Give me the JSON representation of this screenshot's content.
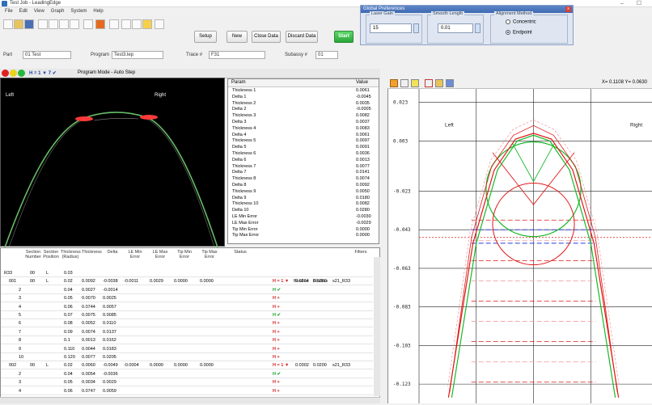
{
  "app": {
    "title": "Test Job - LeadingEdge",
    "window_controls": "–  ☐"
  },
  "menu": [
    "File",
    "Edit",
    "View",
    "Graph",
    "System",
    "Help"
  ],
  "buttons": {
    "setup": "Setup",
    "new": "New",
    "close_data": "Close Data",
    "discard_data": "Discard Data",
    "start": "Start"
  },
  "global_prefs": {
    "title": "Global Preferences",
    "laser_gain_label": "Laser Gain",
    "laser_gain_value": "15",
    "smooth_length_label": "Smooth Length",
    "smooth_length_value": "0.01",
    "alignment_label": "Alignment Method",
    "alignment_options": [
      "Concentric",
      "Endpoint"
    ],
    "alignment_selected": "Endpoint"
  },
  "part_row": {
    "part_label": "Part",
    "part_value": "01 Test",
    "program_label": "Program",
    "program_value": "Test3.lep",
    "trace_label": "Trace #",
    "trace_value": "F31",
    "subassy_label": "Subassy #",
    "subassy_value": "01"
  },
  "status_row": {
    "mode_text": "Program Mode - Auto Step",
    "indicators": "H = 1 ▼ 7 ✔"
  },
  "scan": {
    "left_label": "Left",
    "right_label": "Right"
  },
  "params": {
    "col_param": "Param",
    "col_value": "Value",
    "rows": [
      [
        "Thickness 1",
        "0.0061"
      ],
      [
        "Delta 1",
        "-0.0045"
      ],
      [
        "Thickness 2",
        "0.0035"
      ],
      [
        "Delta 2",
        "-0.0005"
      ],
      [
        "Thickness 3",
        "0.0082"
      ],
      [
        "Delta 3",
        "0.0037"
      ],
      [
        "Thickness 4",
        "0.0083"
      ],
      [
        "Delta 4",
        "0.0061"
      ],
      [
        "Thickness 5",
        "0.0097"
      ],
      [
        "Delta 5",
        "0.0091"
      ],
      [
        "Thickness 6",
        "0.0036"
      ],
      [
        "Delta 6",
        "0.0013"
      ],
      [
        "Thickness 7",
        "0.0077"
      ],
      [
        "Delta 7",
        "0.0141"
      ],
      [
        "Thickness 8",
        "0.0074"
      ],
      [
        "Delta 8",
        "0.0092"
      ],
      [
        "Thickness 9",
        "0.0050"
      ],
      [
        "Delta 9",
        "0.0180"
      ],
      [
        "Thickness 10",
        "0.0082"
      ],
      [
        "Delta 10",
        "0.0280"
      ],
      [
        "LE Min Error",
        "-0.0030"
      ],
      [
        "LE Max Error",
        "-0.0029"
      ],
      [
        "Tip Min Error",
        "0.0000"
      ],
      [
        "Tip Max Error",
        "0.0000"
      ]
    ]
  },
  "grid": {
    "headers": [
      "Section Number",
      "Section Position",
      "Thickness (Radius)",
      "Thickness",
      "Delta",
      "LE Min Error",
      "LE Max Error",
      "Tip Min Error",
      "Tip Max Error",
      "Status",
      "Filters"
    ],
    "extra_headers": [
      "fRadius",
      "tRadius"
    ],
    "rows": [
      {
        "c0": "R33",
        "c1": "00",
        "c2": "L",
        "c3": "0.03",
        "c4": "",
        "c5": "",
        "c6": "",
        "c7": "",
        "c8": "",
        "c9": "",
        "st": "",
        "x1": "",
        "x2": "",
        "x3": ""
      },
      {
        "c0": "001",
        "c1": "00",
        "c2": "L",
        "c3": "0.02",
        "c4": "0.0092",
        "c5": "-0.0038",
        "c6": "-0.0011",
        "c7": "0.0029",
        "c8": "0.0000",
        "c9": "0.0000",
        "st": "H = 1 ▼",
        "x1": "0.0264",
        "x2": "0.0280",
        "x3": "s21_R33"
      },
      {
        "c0": "2",
        "c1": "",
        "c2": "",
        "c3": "0.04",
        "c4": "0.0027",
        "c5": "-0.0014",
        "c6": "",
        "c7": "",
        "c8": "",
        "c9": "",
        "st": "H ✔",
        "x1": "",
        "x2": "",
        "x3": ""
      },
      {
        "c0": "3",
        "c1": "",
        "c2": "",
        "c3": "0.05",
        "c4": "0.0070",
        "c5": "0.0025",
        "c6": "",
        "c7": "",
        "c8": "",
        "c9": "",
        "st": "H +",
        "x1": "",
        "x2": "",
        "x3": ""
      },
      {
        "c0": "4",
        "c1": "",
        "c2": "",
        "c3": "0.06",
        "c4": "0.0744",
        "c5": "0.0057",
        "c6": "",
        "c7": "",
        "c8": "",
        "c9": "",
        "st": "H +",
        "x1": "",
        "x2": "",
        "x3": ""
      },
      {
        "c0": "5",
        "c1": "",
        "c2": "",
        "c3": "0.07",
        "c4": "0.0075",
        "c5": "0.0085",
        "c6": "",
        "c7": "",
        "c8": "",
        "c9": "",
        "st": "H ✔",
        "x1": "",
        "x2": "",
        "x3": ""
      },
      {
        "c0": "6",
        "c1": "",
        "c2": "",
        "c3": "0.08",
        "c4": "0.0052",
        "c5": "0.0110",
        "c6": "",
        "c7": "",
        "c8": "",
        "c9": "",
        "st": "H +",
        "x1": "",
        "x2": "",
        "x3": ""
      },
      {
        "c0": "7",
        "c1": "",
        "c2": "",
        "c3": "0.09",
        "c4": "0.0074",
        "c5": "0.0137",
        "c6": "",
        "c7": "",
        "c8": "",
        "c9": "",
        "st": "H +",
        "x1": "",
        "x2": "",
        "x3": ""
      },
      {
        "c0": "8",
        "c1": "",
        "c2": "",
        "c3": "0.1",
        "c4": "0.0013",
        "c5": "0.0162",
        "c6": "",
        "c7": "",
        "c8": "",
        "c9": "",
        "st": "H +",
        "x1": "",
        "x2": "",
        "x3": ""
      },
      {
        "c0": "9",
        "c1": "",
        "c2": "",
        "c3": "0.110",
        "c4": "0.0044",
        "c5": "0.0183",
        "c6": "",
        "c7": "",
        "c8": "",
        "c9": "",
        "st": "H +",
        "x1": "",
        "x2": "",
        "x3": ""
      },
      {
        "c0": "10",
        "c1": "",
        "c2": "",
        "c3": "0.120",
        "c4": "0.0077",
        "c5": "0.0205",
        "c6": "",
        "c7": "",
        "c8": "",
        "c9": "",
        "st": "H +",
        "x1": "",
        "x2": "",
        "x3": ""
      },
      {
        "c0": "002",
        "c1": "00",
        "c2": "L",
        "c3": "0.02",
        "c4": "0.0060",
        "c5": "-0.0049",
        "c6": "-0.0004",
        "c7": "0.0000",
        "c8": "0.0000",
        "c9": "0.0000",
        "st": "H = 1 ▼",
        "x1": "0.0302",
        "x2": "0.0200",
        "x3": "s21_R33"
      },
      {
        "c0": "2",
        "c1": "",
        "c2": "",
        "c3": "0.04",
        "c4": "0.0054",
        "c5": "-0.0036",
        "c6": "",
        "c7": "",
        "c8": "",
        "c9": "",
        "st": "H ✔",
        "x1": "",
        "x2": "",
        "x3": ""
      },
      {
        "c0": "3",
        "c1": "",
        "c2": "",
        "c3": "0.05",
        "c4": "0.0034",
        "c5": "0.0029",
        "c6": "",
        "c7": "",
        "c8": "",
        "c9": "",
        "st": "H +",
        "x1": "",
        "x2": "",
        "x3": ""
      },
      {
        "c0": "4",
        "c1": "",
        "c2": "",
        "c3": "0.06",
        "c4": "0.0747",
        "c5": "0.0059",
        "c6": "",
        "c7": "",
        "c8": "",
        "c9": "",
        "st": "H +",
        "x1": "",
        "x2": "",
        "x3": ""
      }
    ]
  },
  "plot": {
    "coords": "X= 0.1108  Y= 0.0630",
    "left_label": "Left",
    "right_label": "Right",
    "y_ticks": [
      "0.023",
      "0.003",
      "-0.023",
      "-0.043",
      "-0.063",
      "-0.083",
      "-0.103",
      "-0.123"
    ],
    "colors": {
      "profile": "#e01818",
      "nominal": "#18b828",
      "align": "#2a3fd8",
      "tolerance": "#f3a3a3"
    }
  },
  "chart_data": {
    "type": "line",
    "title": "",
    "ylim": [
      -0.133,
      0.03
    ],
    "y_ticks": [
      0.023,
      0.003,
      -0.023,
      -0.043,
      -0.063,
      -0.083,
      -0.103,
      -0.123
    ],
    "series": [
      {
        "values": [
          [
            -0.05,
            -0.13
          ],
          [
            -0.035,
            -0.05
          ],
          [
            -0.022,
            -0.012
          ],
          [
            -0.01,
            0.003
          ],
          [
            0,
            0.006
          ],
          [
            0.01,
            0.003
          ],
          [
            0.022,
            -0.012
          ],
          [
            0.035,
            -0.05
          ],
          [
            0.05,
            -0.13
          ]
        ]
      },
      {
        "values": [
          [
            -0.052,
            -0.13
          ],
          [
            -0.037,
            -0.05
          ],
          [
            -0.024,
            -0.012
          ],
          [
            -0.011,
            0.004
          ],
          [
            0,
            0.007
          ],
          [
            0.011,
            0.004
          ],
          [
            0.024,
            -0.012
          ],
          [
            0.037,
            -0.05
          ],
          [
            0.052,
            -0.13
          ]
        ]
      }
    ]
  }
}
